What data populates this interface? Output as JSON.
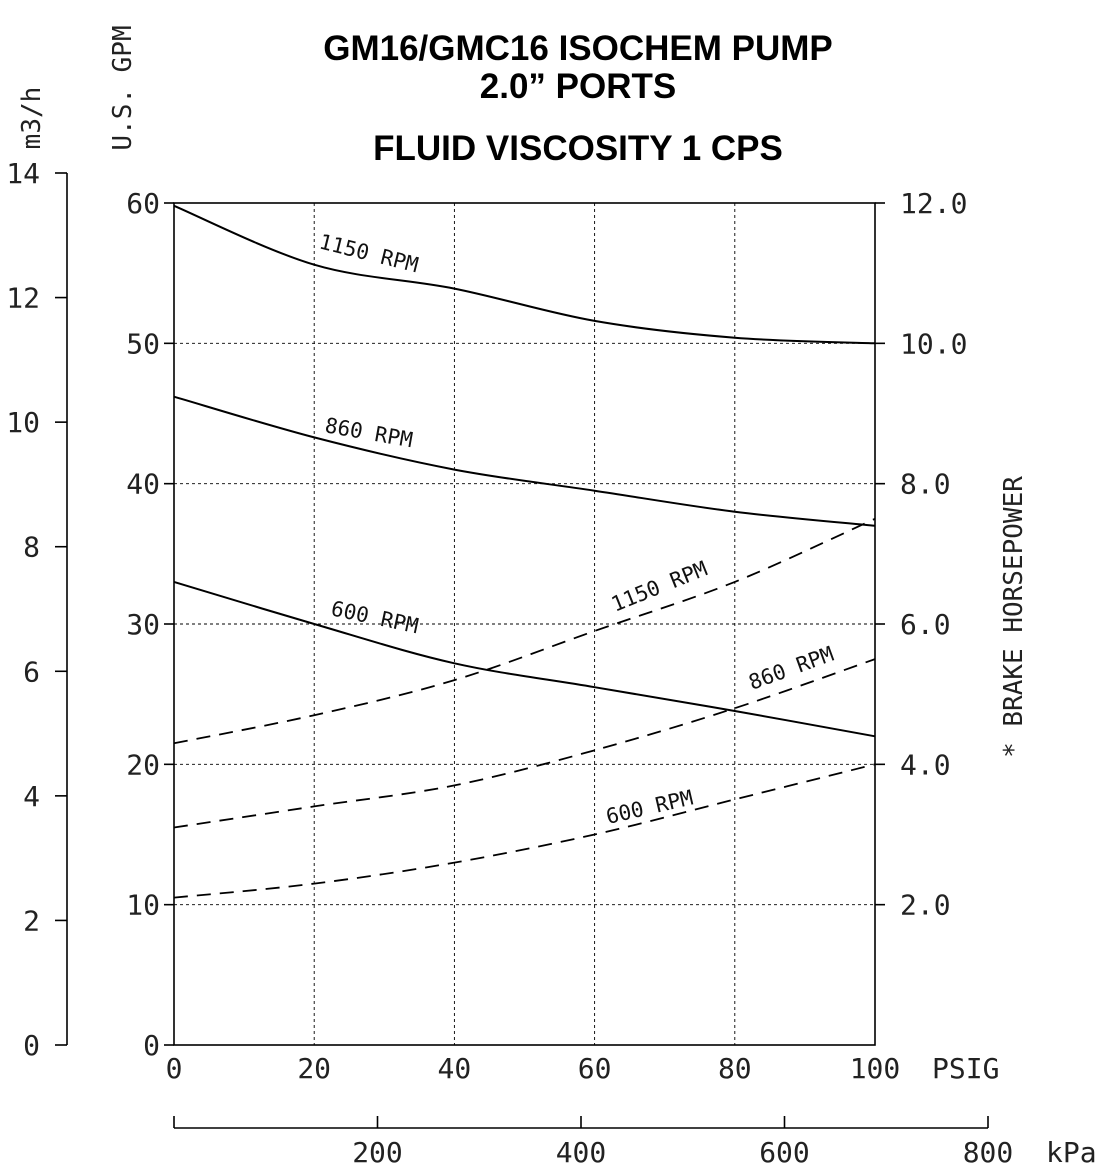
{
  "chart_data": {
    "type": "line",
    "title_lines": [
      "GM16/GMC16 ISOCHEM PUMP",
      "2.0” PORTS",
      "FLUID VISCOSITY 1 CPS"
    ],
    "x": {
      "label": "PSIG",
      "range": [
        0,
        100
      ],
      "ticks": [
        0,
        20,
        40,
        60,
        80,
        100
      ]
    },
    "x_secondary": {
      "label": "kPa",
      "range": [
        0,
        800
      ],
      "ticks": [
        200,
        400,
        600,
        800
      ]
    },
    "y_left": {
      "label": "U.S. GPM",
      "range": [
        0,
        60
      ],
      "ticks": [
        0,
        10,
        20,
        30,
        40,
        50,
        60
      ]
    },
    "y_far_left": {
      "label": "m3/h",
      "range": [
        0,
        14
      ],
      "ticks": [
        0,
        2,
        4,
        6,
        8,
        10,
        12,
        14
      ]
    },
    "y_right": {
      "label": "* BRAKE HORSEPOWER",
      "range": [
        0,
        12
      ],
      "ticks": [
        "2.0",
        "4.0",
        "6.0",
        "8.0",
        "10.0",
        "12.0"
      ]
    },
    "grid": true,
    "flow_series": [
      {
        "name": "1150 RPM",
        "x": [
          0,
          20,
          40,
          60,
          80,
          100
        ],
        "y": [
          59.8,
          55.6,
          53.9,
          51.6,
          50.4,
          50.0
        ]
      },
      {
        "name": "860 RPM",
        "x": [
          0,
          20,
          40,
          60,
          80,
          100
        ],
        "y": [
          46.2,
          43.3,
          41.0,
          39.5,
          38.0,
          37.0
        ]
      },
      {
        "name": "600 RPM",
        "x": [
          0,
          20,
          40,
          60,
          80,
          100
        ],
        "y": [
          33.0,
          30.0,
          27.2,
          25.5,
          23.8,
          22.0
        ]
      }
    ],
    "horsepower_series": [
      {
        "name": "1150 RPM",
        "x": [
          0,
          20,
          40,
          60,
          80,
          100
        ],
        "y": [
          4.3,
          4.7,
          5.2,
          5.9,
          6.6,
          7.5
        ]
      },
      {
        "name": "860 RPM",
        "x": [
          0,
          20,
          40,
          60,
          80,
          100
        ],
        "y": [
          3.1,
          3.4,
          3.7,
          4.2,
          4.8,
          5.5
        ]
      },
      {
        "name": "600 RPM",
        "x": [
          0,
          20,
          40,
          60,
          80,
          100
        ],
        "y": [
          2.1,
          2.3,
          2.6,
          3.0,
          3.5,
          4.0
        ]
      }
    ]
  }
}
